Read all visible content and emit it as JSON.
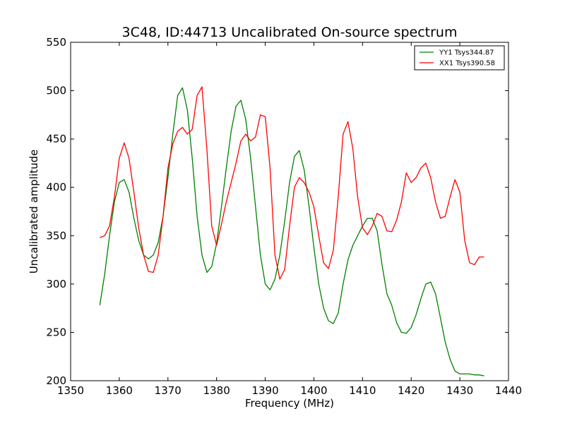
{
  "chart_data": {
    "type": "line",
    "title": "3C48, ID:44713 Uncalibrated On-source spectrum",
    "xlabel": "Frequency (MHz)",
    "ylabel": "Uncalibrated amplitude",
    "xlim": [
      1350,
      1440
    ],
    "ylim": [
      200,
      550
    ],
    "xticks": [
      1350,
      1360,
      1370,
      1380,
      1390,
      1400,
      1410,
      1420,
      1430,
      1440
    ],
    "yticks": [
      200,
      250,
      300,
      350,
      400,
      450,
      500,
      550
    ],
    "grid": false,
    "legend_position": "top-right",
    "series": [
      {
        "name": "YY1 Tsys344.87",
        "color": "#008000",
        "x": [
          1356.0,
          1357.0,
          1358.0,
          1359.0,
          1360.0,
          1361.0,
          1362.0,
          1363.0,
          1364.0,
          1365.0,
          1366.0,
          1367.0,
          1368.0,
          1369.0,
          1370.0,
          1371.0,
          1372.0,
          1373.0,
          1374.0,
          1375.0,
          1376.0,
          1377.0,
          1378.0,
          1379.0,
          1380.0,
          1381.0,
          1382.0,
          1383.0,
          1384.0,
          1385.0,
          1386.0,
          1387.0,
          1388.0,
          1389.0,
          1390.0,
          1391.0,
          1392.0,
          1393.0,
          1394.0,
          1395.0,
          1396.0,
          1397.0,
          1398.0,
          1399.0,
          1400.0,
          1401.0,
          1402.0,
          1403.0,
          1404.0,
          1405.0,
          1406.0,
          1407.0,
          1408.0,
          1409.0,
          1410.0,
          1411.0,
          1412.0,
          1413.0,
          1414.0,
          1415.0,
          1416.0,
          1417.0,
          1418.0,
          1419.0,
          1420.0,
          1421.0,
          1422.0,
          1423.0,
          1424.0,
          1425.0,
          1426.0,
          1427.0,
          1428.0,
          1429.0,
          1430.0,
          1431.0,
          1432.0,
          1433.0,
          1434.0,
          1435.0
        ],
        "y": [
          278,
          310,
          350,
          385,
          405,
          408,
          395,
          368,
          345,
          330,
          326,
          330,
          343,
          370,
          410,
          455,
          495,
          503,
          480,
          430,
          370,
          330,
          312,
          318,
          342,
          380,
          420,
          458,
          484,
          490,
          470,
          430,
          380,
          330,
          300,
          294,
          305,
          330,
          365,
          405,
          432,
          438,
          418,
          380,
          338,
          300,
          275,
          262,
          259,
          270,
          300,
          325,
          340,
          350,
          360,
          368,
          368,
          355,
          320,
          290,
          278,
          260,
          250,
          249,
          255,
          268,
          285,
          300,
          302,
          290,
          265,
          240,
          222,
          210,
          207,
          207,
          207,
          206,
          206,
          205
        ]
      },
      {
        "name": "XX1 Tsys390.58",
        "color": "#ff0000",
        "x": [
          1356.0,
          1357.0,
          1358.0,
          1359.0,
          1360.0,
          1361.0,
          1362.0,
          1363.0,
          1364.0,
          1365.0,
          1366.0,
          1367.0,
          1368.0,
          1369.0,
          1370.0,
          1371.0,
          1372.0,
          1373.0,
          1374.0,
          1375.0,
          1376.0,
          1377.0,
          1378.0,
          1379.0,
          1380.0,
          1381.0,
          1382.0,
          1383.0,
          1384.0,
          1385.0,
          1386.0,
          1387.0,
          1388.0,
          1389.0,
          1390.0,
          1391.0,
          1392.0,
          1393.0,
          1394.0,
          1395.0,
          1396.0,
          1397.0,
          1398.0,
          1399.0,
          1400.0,
          1401.0,
          1402.0,
          1403.0,
          1404.0,
          1405.0,
          1406.0,
          1407.0,
          1408.0,
          1409.0,
          1410.0,
          1411.0,
          1412.0,
          1413.0,
          1414.0,
          1415.0,
          1416.0,
          1417.0,
          1418.0,
          1419.0,
          1420.0,
          1421.0,
          1422.0,
          1423.0,
          1424.0,
          1425.0,
          1426.0,
          1427.0,
          1428.0,
          1429.0,
          1430.0,
          1431.0,
          1432.0,
          1433.0,
          1434.0,
          1435.0
        ],
        "y": [
          348,
          350,
          360,
          390,
          430,
          446,
          430,
          395,
          358,
          330,
          313,
          312,
          330,
          370,
          420,
          445,
          458,
          462,
          455,
          460,
          495,
          504,
          440,
          360,
          340,
          362,
          385,
          405,
          425,
          448,
          455,
          448,
          452,
          475,
          473,
          420,
          330,
          305,
          315,
          360,
          400,
          410,
          405,
          395,
          380,
          350,
          322,
          316,
          335,
          390,
          455,
          468,
          440,
          390,
          358,
          351,
          360,
          373,
          370,
          355,
          354,
          366,
          385,
          415,
          405,
          410,
          420,
          425,
          410,
          385,
          368,
          370,
          390,
          408,
          395,
          345,
          322,
          320,
          328,
          328
        ]
      }
    ]
  }
}
